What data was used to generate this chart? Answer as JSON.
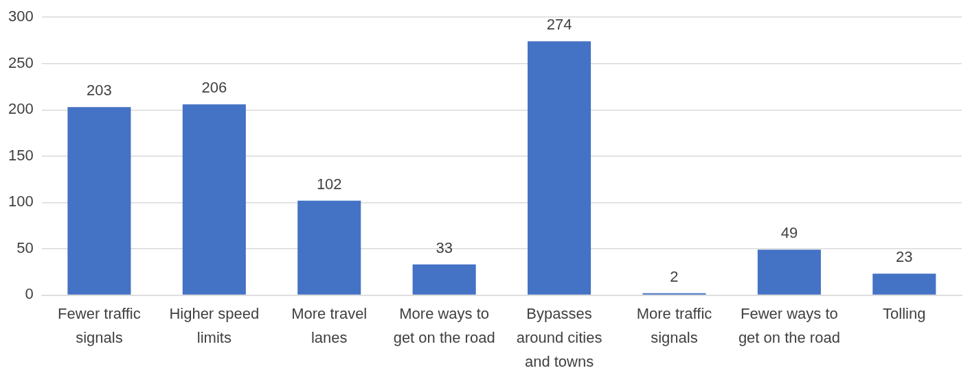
{
  "chart_data": {
    "type": "bar",
    "categories": [
      "Fewer traffic signals",
      "Higher speed limits",
      "More travel lanes",
      "More ways to get on the road",
      "Bypasses around cities and towns",
      "More traffic signals",
      "Fewer ways to get on the road",
      "Tolling"
    ],
    "values": [
      203,
      206,
      102,
      33,
      274,
      2,
      49,
      23
    ],
    "color": "#4472c4",
    "ylim": [
      0,
      300
    ],
    "yticks": [
      0,
      50,
      100,
      150,
      200,
      250,
      300
    ],
    "grid": "y",
    "data_labels": true
  }
}
